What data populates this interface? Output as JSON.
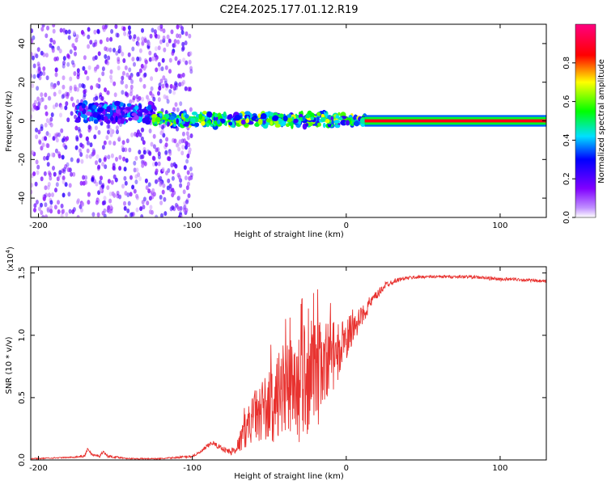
{
  "figure": {
    "title": "C2E4.2025.177.01.12.R19"
  },
  "chart_data": [
    {
      "type": "heatmap",
      "xlabel": "Height of straight line (km)",
      "ylabel": "Frequency (Hz)",
      "xlim": [
        -205,
        130
      ],
      "ylim": [
        -50,
        50
      ],
      "xticks": [
        -200,
        -100,
        0,
        100
      ],
      "xtick_labels": [
        "-200",
        "-100",
        "0",
        "100"
      ],
      "yticks": [
        -40,
        -20,
        0,
        20,
        40
      ],
      "ytick_labels": [
        "-40",
        "-20",
        "0",
        "20",
        "40"
      ],
      "grid": false,
      "colorbar": {
        "label": "Normalized spectral amplitude",
        "range": [
          0,
          1
        ],
        "ticks": [
          0.0,
          0.2,
          0.4,
          0.6,
          0.8
        ],
        "tick_labels": [
          "0.0",
          "0.2",
          "0.4",
          "0.6",
          "0.8"
        ],
        "colormap": [
          "#ffffff",
          "#8000ff",
          "#0000ff",
          "#00e0ff",
          "#00ff00",
          "#ffff00",
          "#ff0000",
          "#ff0080"
        ]
      },
      "bands": [
        {
          "x_range": [
            -205,
            -100
          ],
          "freq_range": [
            -50,
            50
          ],
          "amplitude": 0.12,
          "character": "scattered-noise"
        },
        {
          "x_range": [
            -175,
            -125
          ],
          "freq_range": [
            0,
            8
          ],
          "amplitude": 0.35,
          "character": "weak-band"
        },
        {
          "x_range": [
            -125,
            12
          ],
          "freq_range": [
            -2,
            3
          ],
          "amplitude": 0.6,
          "character": "carrier-band"
        },
        {
          "x_range": [
            12,
            130
          ],
          "freq_range": [
            -1,
            1
          ],
          "amplitude": 1.0,
          "character": "steady-carrier"
        }
      ]
    },
    {
      "type": "line",
      "xlabel": "Height of straight line (km)",
      "ylabel": "SNR (10 * v/v)",
      "multiplier_label": "(x10",
      "multiplier_exp": "4",
      "xlim": [
        -205,
        130
      ],
      "ylim": [
        0,
        1.55
      ],
      "xticks": [
        -200,
        -100,
        0,
        100
      ],
      "xtick_labels": [
        "-200",
        "-100",
        "0",
        "100"
      ],
      "yticks": [
        0,
        0.5,
        1.0,
        1.5
      ],
      "ytick_labels": [
        "0.0",
        "0.5",
        "1.0",
        "1.5"
      ],
      "grid": false,
      "series": [
        {
          "color": "#e8322f",
          "x": [
            -205,
            -180,
            -170,
            -168,
            -165,
            -160,
            -158,
            -155,
            -140,
            -120,
            -100,
            -95,
            -90,
            -87,
            -85,
            -80,
            -75,
            -70,
            -65,
            -60,
            -55,
            -50,
            -45,
            -40,
            -35,
            -30,
            -25,
            -20,
            -15,
            -10,
            -5,
            0,
            5,
            10,
            15,
            20,
            25,
            30,
            35,
            40,
            50,
            60,
            70,
            80,
            90,
            100,
            110,
            120,
            130
          ],
          "y": [
            0.01,
            0.02,
            0.03,
            0.09,
            0.04,
            0.03,
            0.07,
            0.03,
            0.01,
            0.01,
            0.03,
            0.06,
            0.11,
            0.14,
            0.12,
            0.09,
            0.06,
            0.12,
            0.25,
            0.35,
            0.4,
            0.42,
            0.48,
            0.55,
            0.5,
            0.6,
            0.7,
            0.62,
            0.82,
            0.8,
            0.88,
            0.95,
            1.05,
            1.15,
            1.25,
            1.32,
            1.4,
            1.43,
            1.45,
            1.46,
            1.47,
            1.47,
            1.47,
            1.47,
            1.46,
            1.45,
            1.45,
            1.44,
            1.43
          ],
          "noise_amplitude": [
            0.005,
            0.005,
            0.01,
            0.01,
            0.01,
            0.01,
            0.01,
            0.01,
            0.005,
            0.005,
            0.01,
            0.01,
            0.02,
            0.02,
            0.02,
            0.02,
            0.03,
            0.06,
            0.15,
            0.2,
            0.25,
            0.3,
            0.35,
            0.4,
            0.42,
            0.45,
            0.5,
            0.5,
            0.35,
            0.3,
            0.25,
            0.2,
            0.12,
            0.08,
            0.06,
            0.04,
            0.03,
            0.02,
            0.015,
            0.015,
            0.012,
            0.012,
            0.012,
            0.012,
            0.015,
            0.015,
            0.012,
            0.012,
            0.012
          ]
        }
      ]
    }
  ]
}
